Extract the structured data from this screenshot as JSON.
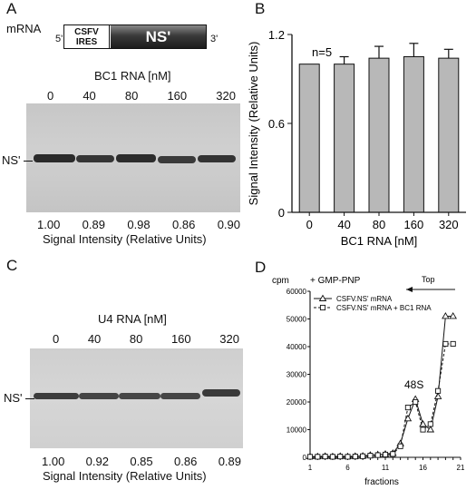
{
  "panelA": {
    "letter": "A",
    "mrna_label": "mRNA",
    "five_prime": "5'",
    "three_prime": "3'",
    "ires_line1": "CSFV",
    "ires_line2": "IRES",
    "ns_box": "NS'",
    "conc_title": "BC1 RNA [nM]",
    "concentrations": [
      "0",
      "40",
      "80",
      "160",
      "320"
    ],
    "band_label": "NS'",
    "intensities": [
      "1.00",
      "0.89",
      "0.98",
      "0.86",
      "0.90"
    ],
    "intensity_caption": "Signal Intensity (Relative Units)"
  },
  "panelB": {
    "letter": "B",
    "annotation": "n=5",
    "chart_data": {
      "type": "bar",
      "categories": [
        "0",
        "40",
        "80",
        "160",
        "320"
      ],
      "values": [
        1.0,
        1.0,
        1.04,
        1.05,
        1.04
      ],
      "errors": [
        0.0,
        0.05,
        0.08,
        0.09,
        0.06
      ],
      "ylabel": "Signal Intensity (Relative Units)",
      "xlabel": "BC1 RNA [nM]",
      "ylim": [
        0,
        1.2
      ],
      "yticks": [
        "0",
        "0.6",
        "1.2"
      ],
      "bar_color": "#b8b8b8",
      "grid": false
    }
  },
  "panelC": {
    "letter": "C",
    "conc_title": "U4 RNA [nM]",
    "concentrations": [
      "0",
      "40",
      "80",
      "160",
      "320"
    ],
    "band_label": "NS'",
    "intensities": [
      "1.00",
      "0.92",
      "0.85",
      "0.86",
      "0.89"
    ],
    "intensity_caption": "Signal Intensity (Relative Units)"
  },
  "panelD": {
    "letter": "D",
    "annotation": "+ GMP-PNP",
    "direction_label": "Top",
    "peak_label": "48S",
    "chart_data": {
      "type": "line",
      "ylabel": "cpm",
      "xlabel": "fractions",
      "ylim": [
        0,
        60000
      ],
      "xlim": [
        1,
        21
      ],
      "yticks": [
        "0",
        "10000",
        "20000",
        "30000",
        "40000",
        "50000",
        "60000"
      ],
      "xticks": [
        "1",
        "6",
        "11",
        "16",
        "21"
      ],
      "legend_position": "top-left",
      "series": [
        {
          "name": "CSFV.NS' mRNA",
          "marker": "triangle",
          "line": "solid",
          "x": [
            1,
            2,
            3,
            4,
            5,
            6,
            7,
            8,
            9,
            10,
            11,
            12,
            13,
            14,
            15,
            16,
            17,
            18,
            19,
            20
          ],
          "y": [
            300,
            300,
            400,
            300,
            400,
            300,
            400,
            500,
            800,
            1000,
            1200,
            1500,
            5000,
            14000,
            21000,
            12000,
            10000,
            22000,
            51000,
            51000
          ]
        },
        {
          "name": "CSFV.NS' mRNA + BC1 RNA",
          "marker": "square",
          "line": "dashed",
          "x": [
            1,
            2,
            3,
            4,
            5,
            6,
            7,
            8,
            9,
            10,
            11,
            12,
            13,
            14,
            15,
            16,
            17,
            18,
            19,
            20
          ],
          "y": [
            200,
            200,
            300,
            200,
            300,
            200,
            300,
            400,
            600,
            800,
            1000,
            1200,
            4000,
            18000,
            20000,
            10000,
            12000,
            24000,
            41000,
            41000
          ]
        }
      ]
    }
  }
}
